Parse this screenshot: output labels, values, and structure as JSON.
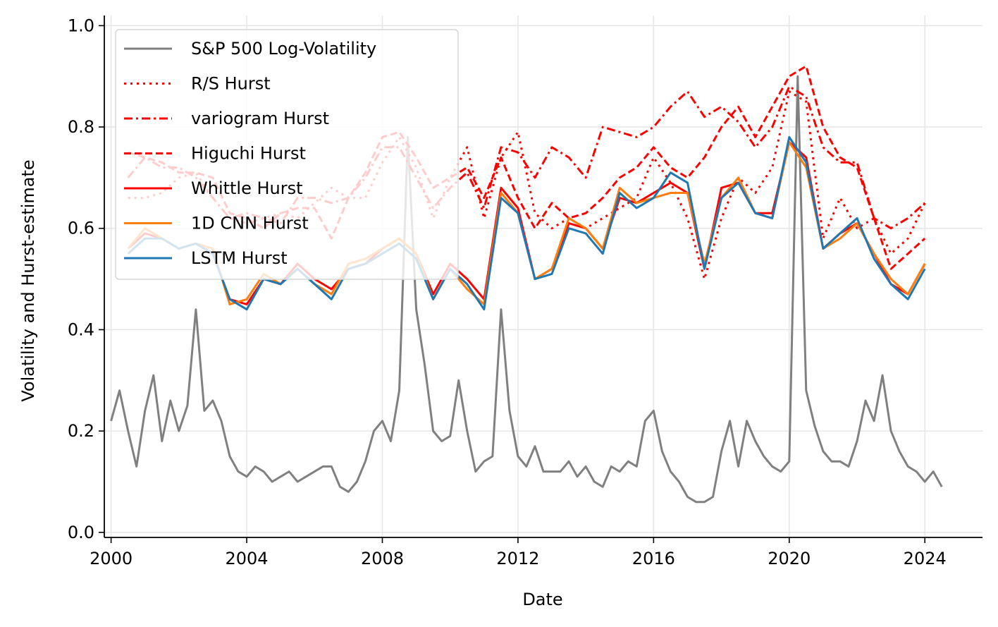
{
  "chart_data": {
    "type": "line",
    "xlabel": "Date",
    "ylabel": "Volatility and Hurst-estimate",
    "xlim": [
      1999.8,
      2025.7
    ],
    "ylim": [
      -0.01,
      1.02
    ],
    "x_ticks": [
      2000,
      2004,
      2008,
      2012,
      2016,
      2020,
      2024
    ],
    "x_tick_labels": [
      "2000",
      "2004",
      "2008",
      "2012",
      "2016",
      "2020",
      "2024"
    ],
    "y_ticks": [
      0.0,
      0.2,
      0.4,
      0.6,
      0.8,
      1.0
    ],
    "y_tick_labels": [
      "0.0",
      "0.2",
      "0.4",
      "0.6",
      "0.8",
      "1.0"
    ],
    "grid": true,
    "legend_position": "top-left",
    "legend": [
      {
        "name": "S&P 500 Log-Volatility",
        "color": "#808080",
        "style": "solid"
      },
      {
        "name": "R/S Hurst",
        "color": "#ff0000",
        "style": "dotted"
      },
      {
        "name": "variogram Hurst",
        "color": "#ff0000",
        "style": "dashdot"
      },
      {
        "name": "Higuchi Hurst",
        "color": "#ff0000",
        "style": "dashed"
      },
      {
        "name": "Whittle Hurst",
        "color": "#ff0000",
        "style": "solid"
      },
      {
        "name": "1D CNN Hurst",
        "color": "#ff7f0e",
        "style": "solid"
      },
      {
        "name": "LSTM Hurst",
        "color": "#1f77b4",
        "style": "solid"
      }
    ],
    "volatility": {
      "x": [
        2000.0,
        2000.25,
        2000.5,
        2000.75,
        2001.0,
        2001.25,
        2001.5,
        2001.75,
        2002.0,
        2002.25,
        2002.5,
        2002.75,
        2003.0,
        2003.25,
        2003.5,
        2003.75,
        2004.0,
        2004.25,
        2004.5,
        2004.75,
        2005.0,
        2005.25,
        2005.5,
        2005.75,
        2006.0,
        2006.25,
        2006.5,
        2006.75,
        2007.0,
        2007.25,
        2007.5,
        2007.75,
        2008.0,
        2008.25,
        2008.5,
        2008.75,
        2009.0,
        2009.25,
        2009.5,
        2009.75,
        2010.0,
        2010.25,
        2010.5,
        2010.75,
        2011.0,
        2011.25,
        2011.5,
        2011.75,
        2012.0,
        2012.25,
        2012.5,
        2012.75,
        2013.0,
        2013.25,
        2013.5,
        2013.75,
        2014.0,
        2014.25,
        2014.5,
        2014.75,
        2015.0,
        2015.25,
        2015.5,
        2015.75,
        2016.0,
        2016.25,
        2016.5,
        2016.75,
        2017.0,
        2017.25,
        2017.5,
        2017.75,
        2018.0,
        2018.25,
        2018.5,
        2018.75,
        2019.0,
        2019.25,
        2019.5,
        2019.75,
        2020.0,
        2020.25,
        2020.5,
        2020.75,
        2021.0,
        2021.25,
        2021.5,
        2021.75,
        2022.0,
        2022.25,
        2022.5,
        2022.75,
        2023.0,
        2023.25,
        2023.5,
        2023.75,
        2024.0,
        2024.25,
        2024.5
      ],
      "y": [
        0.22,
        0.28,
        0.2,
        0.13,
        0.24,
        0.31,
        0.18,
        0.26,
        0.2,
        0.25,
        0.44,
        0.24,
        0.26,
        0.22,
        0.15,
        0.12,
        0.11,
        0.13,
        0.12,
        0.1,
        0.11,
        0.12,
        0.1,
        0.11,
        0.12,
        0.13,
        0.13,
        0.09,
        0.08,
        0.1,
        0.14,
        0.2,
        0.22,
        0.18,
        0.28,
        0.78,
        0.44,
        0.33,
        0.2,
        0.18,
        0.19,
        0.3,
        0.2,
        0.12,
        0.14,
        0.15,
        0.44,
        0.24,
        0.15,
        0.13,
        0.17,
        0.12,
        0.12,
        0.12,
        0.14,
        0.11,
        0.13,
        0.1,
        0.09,
        0.13,
        0.12,
        0.14,
        0.13,
        0.22,
        0.24,
        0.16,
        0.12,
        0.1,
        0.07,
        0.06,
        0.06,
        0.07,
        0.16,
        0.22,
        0.13,
        0.22,
        0.18,
        0.15,
        0.13,
        0.12,
        0.14,
        0.9,
        0.28,
        0.21,
        0.16,
        0.14,
        0.14,
        0.13,
        0.18,
        0.26,
        0.22,
        0.31,
        0.2,
        0.16,
        0.13,
        0.12,
        0.1,
        0.12,
        0.09
      ]
    },
    "hurst_x": [
      2000.5,
      2001.0,
      2001.5,
      2002.0,
      2002.5,
      2003.0,
      2003.5,
      2004.0,
      2004.5,
      2005.0,
      2005.5,
      2006.0,
      2006.5,
      2007.0,
      2007.5,
      2008.0,
      2008.5,
      2009.0,
      2009.5,
      2010.0,
      2010.5,
      2011.0,
      2011.5,
      2012.0,
      2012.5,
      2013.0,
      2013.5,
      2014.0,
      2014.5,
      2015.0,
      2015.5,
      2016.0,
      2016.5,
      2017.0,
      2017.5,
      2018.0,
      2018.5,
      2019.0,
      2019.5,
      2020.0,
      2020.5,
      2021.0,
      2021.5,
      2022.0,
      2022.5,
      2023.0,
      2023.5,
      2024.0
    ],
    "series": [
      {
        "name": "R/S Hurst",
        "values": [
          0.66,
          0.66,
          0.67,
          0.7,
          0.71,
          0.66,
          0.62,
          0.61,
          0.62,
          0.63,
          0.62,
          0.65,
          0.68,
          0.66,
          0.66,
          0.73,
          0.78,
          0.72,
          0.62,
          0.7,
          0.76,
          0.62,
          0.74,
          0.79,
          0.63,
          0.6,
          0.62,
          0.6,
          0.62,
          0.64,
          0.66,
          0.74,
          0.69,
          0.62,
          0.5,
          0.62,
          0.7,
          0.67,
          0.72,
          0.87,
          0.85,
          0.58,
          0.66,
          0.6,
          0.62,
          0.55,
          0.58,
          0.65
        ]
      },
      {
        "name": "variogram Hurst",
        "values": [
          0.7,
          0.74,
          0.72,
          0.72,
          0.7,
          0.66,
          0.62,
          0.63,
          0.62,
          0.61,
          0.66,
          0.66,
          0.65,
          0.66,
          0.7,
          0.76,
          0.76,
          0.7,
          0.64,
          0.68,
          0.71,
          0.64,
          0.76,
          0.75,
          0.7,
          0.76,
          0.74,
          0.7,
          0.8,
          0.79,
          0.78,
          0.8,
          0.84,
          0.87,
          0.82,
          0.84,
          0.81,
          0.76,
          0.8,
          0.88,
          0.86,
          0.76,
          0.73,
          0.73,
          0.62,
          0.6,
          0.62,
          0.65
        ]
      },
      {
        "name": "Higuchi Hurst",
        "values": [
          0.75,
          0.74,
          0.73,
          0.71,
          0.71,
          0.7,
          0.63,
          0.62,
          0.6,
          0.63,
          0.64,
          0.64,
          0.58,
          0.66,
          0.71,
          0.78,
          0.79,
          0.74,
          0.68,
          0.7,
          0.72,
          0.66,
          0.74,
          0.66,
          0.6,
          0.65,
          0.62,
          0.63,
          0.66,
          0.7,
          0.72,
          0.76,
          0.72,
          0.7,
          0.74,
          0.8,
          0.84,
          0.78,
          0.84,
          0.9,
          0.92,
          0.8,
          0.74,
          0.72,
          0.62,
          0.52,
          0.55,
          0.58
        ]
      },
      {
        "name": "Whittle Hurst",
        "values": [
          0.56,
          0.59,
          0.58,
          0.56,
          0.57,
          0.55,
          0.46,
          0.45,
          0.5,
          0.49,
          0.53,
          0.5,
          0.48,
          0.52,
          0.53,
          0.56,
          0.58,
          0.55,
          0.47,
          0.53,
          0.5,
          0.46,
          0.68,
          0.64,
          0.5,
          0.52,
          0.61,
          0.6,
          0.56,
          0.66,
          0.65,
          0.67,
          0.69,
          0.67,
          0.52,
          0.68,
          0.69,
          0.63,
          0.63,
          0.77,
          0.74,
          0.56,
          0.59,
          0.61,
          0.55,
          0.49,
          0.47,
          0.53
        ]
      },
      {
        "name": "1D CNN Hurst",
        "values": [
          0.56,
          0.6,
          0.58,
          0.56,
          0.57,
          0.56,
          0.45,
          0.46,
          0.51,
          0.49,
          0.52,
          0.49,
          0.47,
          0.53,
          0.54,
          0.56,
          0.58,
          0.55,
          0.46,
          0.52,
          0.48,
          0.45,
          0.67,
          0.63,
          0.5,
          0.52,
          0.62,
          0.6,
          0.56,
          0.68,
          0.65,
          0.66,
          0.67,
          0.67,
          0.53,
          0.66,
          0.7,
          0.63,
          0.62,
          0.77,
          0.72,
          0.56,
          0.58,
          0.61,
          0.55,
          0.5,
          0.47,
          0.53
        ]
      },
      {
        "name": "LSTM Hurst",
        "values": [
          0.55,
          0.58,
          0.58,
          0.56,
          0.57,
          0.55,
          0.46,
          0.44,
          0.5,
          0.49,
          0.52,
          0.49,
          0.46,
          0.52,
          0.53,
          0.55,
          0.57,
          0.54,
          0.46,
          0.52,
          0.49,
          0.44,
          0.66,
          0.63,
          0.5,
          0.51,
          0.6,
          0.59,
          0.55,
          0.67,
          0.64,
          0.66,
          0.71,
          0.69,
          0.52,
          0.66,
          0.69,
          0.63,
          0.62,
          0.78,
          0.73,
          0.56,
          0.59,
          0.62,
          0.54,
          0.49,
          0.46,
          0.52
        ]
      }
    ]
  }
}
